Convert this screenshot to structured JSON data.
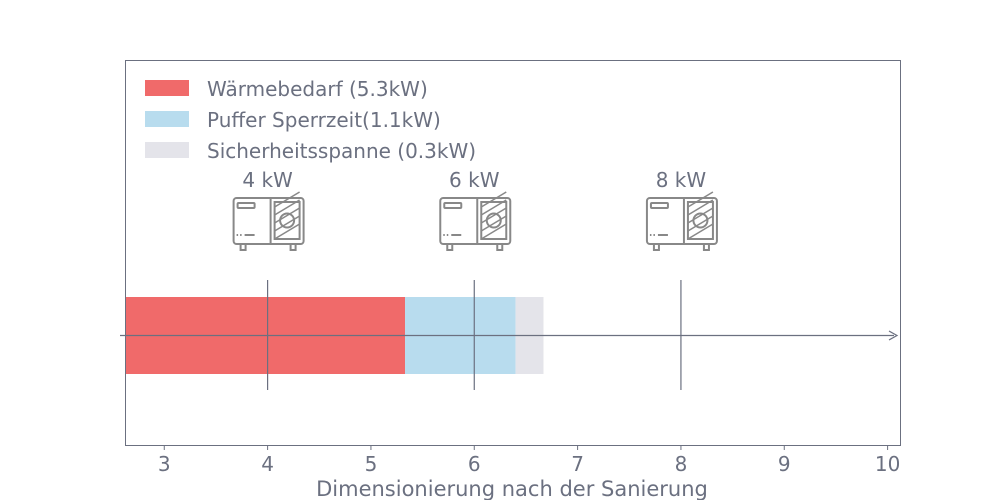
{
  "chart_data": {
    "type": "bar",
    "orientation": "horizontal",
    "stacked": true,
    "xlabel": "Dimensionierung nach der Sanierung",
    "ylabel": "",
    "xlim": [
      2.62,
      10.12
    ],
    "xticks": [
      3,
      4,
      5,
      6,
      7,
      8,
      9,
      10
    ],
    "grid": false,
    "legend_position": "top-left",
    "series": [
      {
        "name": "Wärmebedarf (5.3kW)",
        "start": 0,
        "value": 5.33,
        "color": "#f06a6a"
      },
      {
        "name": "Puffer Sperrzeit(1.1kW)",
        "start": 5.33,
        "value": 1.07,
        "color": "#b8dcee"
      },
      {
        "name": "Sicherheitsspanne (0.3kW)",
        "start": 6.4,
        "value": 0.27,
        "color": "#e4e4ea"
      }
    ],
    "markers": [
      {
        "x": 4,
        "label": "4 kW",
        "icon": "heat-pump-icon"
      },
      {
        "x": 6,
        "label": "6 kW",
        "icon": "heat-pump-icon"
      },
      {
        "x": 8,
        "label": "8 kW",
        "icon": "heat-pump-icon"
      }
    ],
    "axis_color": "#6b7080"
  }
}
